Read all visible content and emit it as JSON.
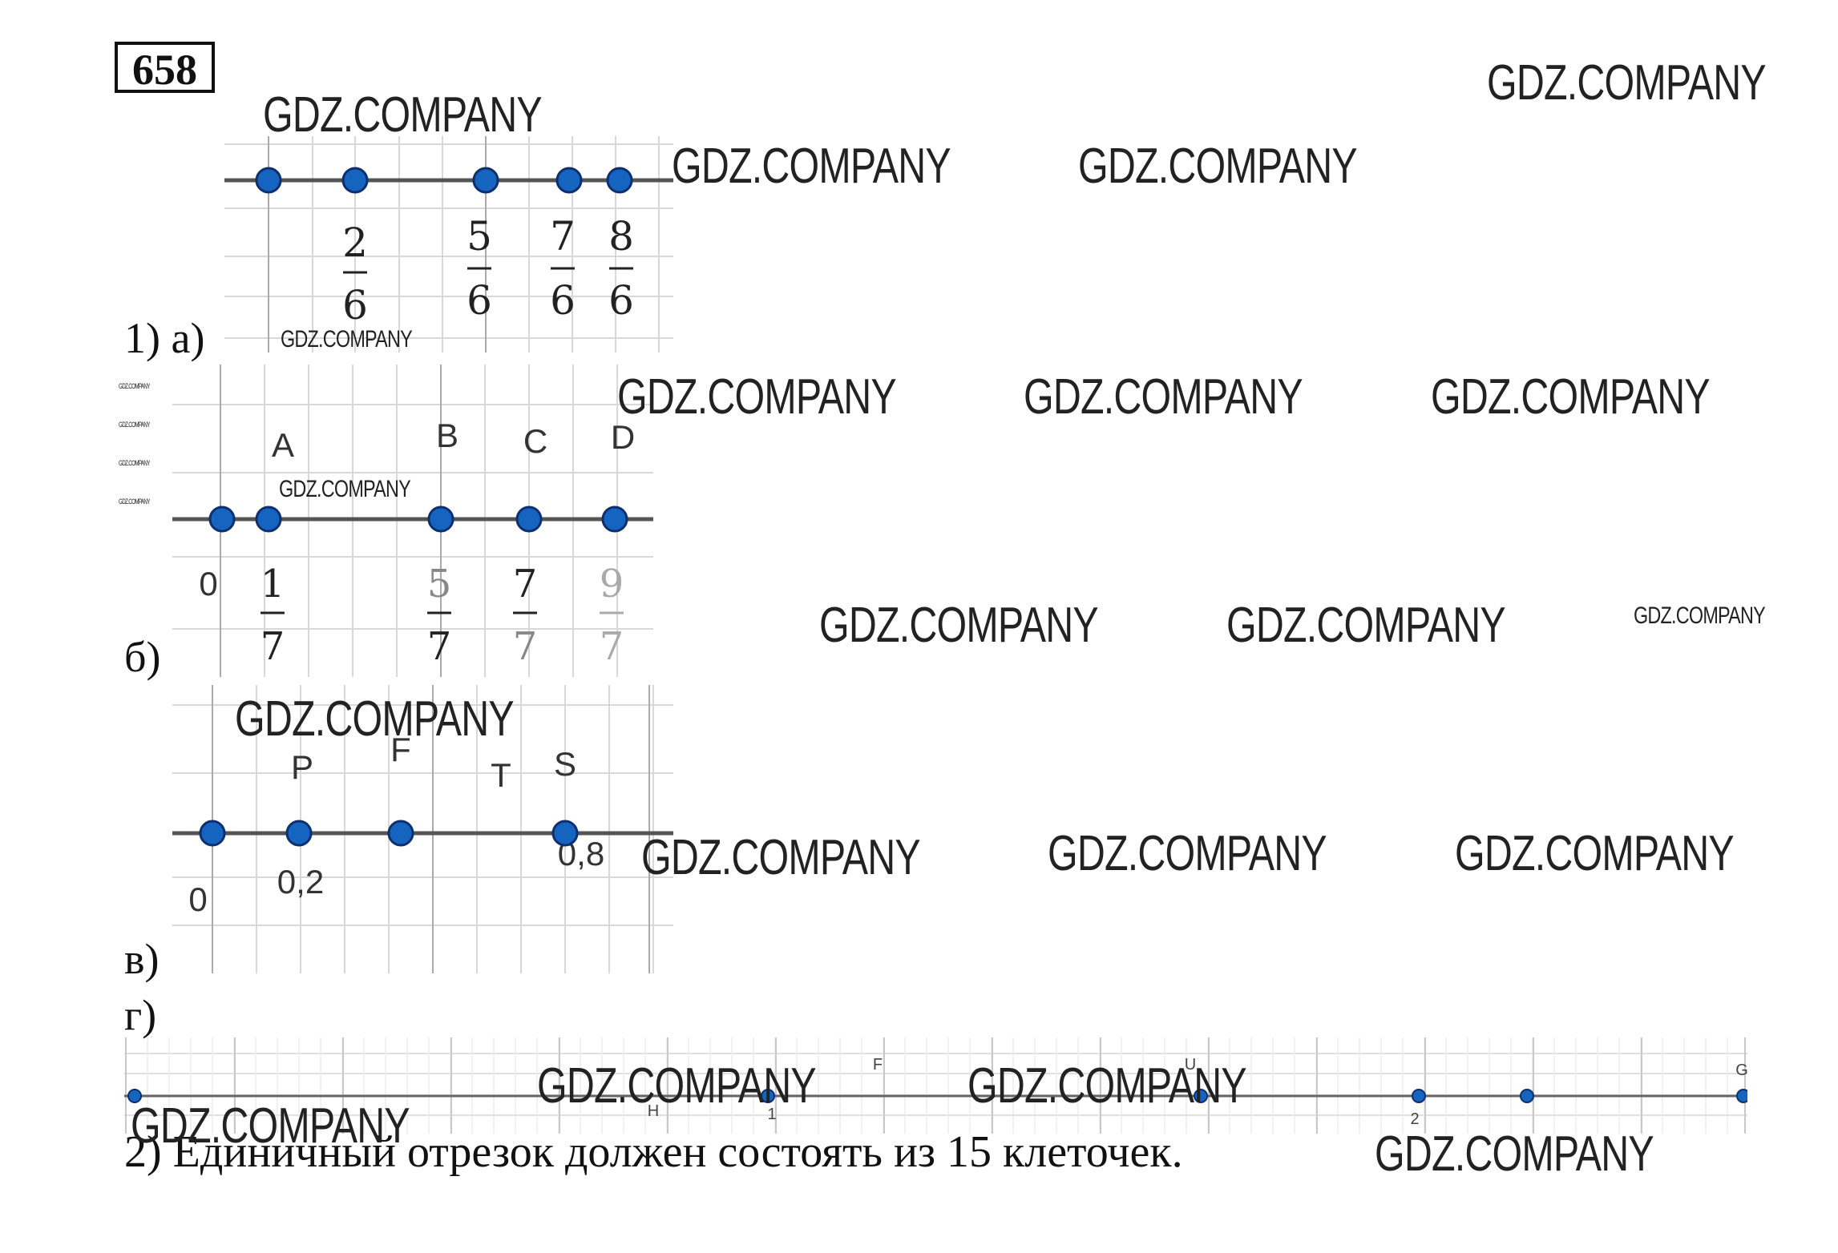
{
  "task_number": "658",
  "watermark": "GDZ.COMPANY",
  "part1": {
    "label_a": "1) а)",
    "label_b": "б)",
    "label_v": "в)",
    "label_g": "г)",
    "a": {
      "fractions": [
        {
          "num": "2",
          "den": "6"
        },
        {
          "num": "5",
          "den": "6"
        },
        {
          "num": "7",
          "den": "6"
        },
        {
          "num": "8",
          "den": "6"
        }
      ]
    },
    "b": {
      "points": [
        "A",
        "B",
        "C",
        "D"
      ],
      "zero": "0",
      "fractions": [
        {
          "num": "1",
          "den": "7"
        },
        {
          "num": "5",
          "den": "7"
        },
        {
          "num": "7",
          "den": "7"
        },
        {
          "num": "9",
          "den": "7"
        }
      ]
    },
    "v": {
      "points": [
        "P",
        "F",
        "T",
        "S"
      ],
      "zero": "0",
      "val_p": "0,2",
      "val_s": "0,8"
    },
    "g": {
      "points": [
        "F",
        "U",
        "H",
        "G"
      ],
      "ticks": [
        "1",
        "2"
      ]
    }
  },
  "part2": {
    "answer": "2) Единичный отрезок должен состоять из 15 клеточек."
  },
  "colors": {
    "point": "#1565c0",
    "point_stroke": "#0d2f6e",
    "axis": "#555555",
    "grid": "#d8d8d8"
  }
}
